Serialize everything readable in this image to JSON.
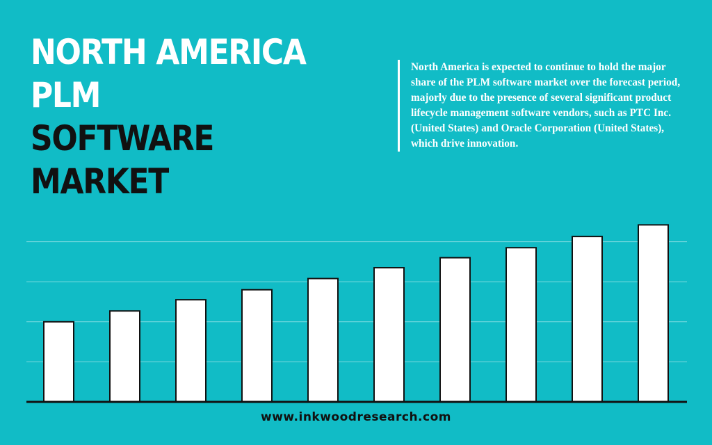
{
  "title": {
    "line1": "NORTH AMERICA",
    "line2": "PLM",
    "line3": "SOFTWARE",
    "line4": "MARKET"
  },
  "description": "North America is expected to continue to hold the major share of the PLM software market over the forecast period, majorly due to the presence of several significant product lifecycle management software vendors, such as PTC Inc. (United States) and Oracle Corporation (United States), which drive innovation.",
  "footer": {
    "url": "www.inkwoodresearch.com"
  },
  "colors": {
    "background": "#11bcc6",
    "bar_fill": "#ffffff",
    "bar_stroke": "#111111",
    "gridline": "#7fdbe0",
    "axis": "#111111"
  },
  "chart_data": {
    "type": "bar",
    "title": "",
    "xlabel": "",
    "ylabel": "",
    "ylim": [
      0,
      5
    ],
    "grid": true,
    "gridlines": [
      1,
      2,
      3,
      4
    ],
    "categories": [
      "",
      "",
      "",
      "",
      "",
      "",
      "",
      "",
      "",
      ""
    ],
    "values": [
      2.0,
      2.27,
      2.55,
      2.8,
      3.08,
      3.35,
      3.6,
      3.85,
      4.13,
      4.42
    ],
    "legend": "none"
  }
}
